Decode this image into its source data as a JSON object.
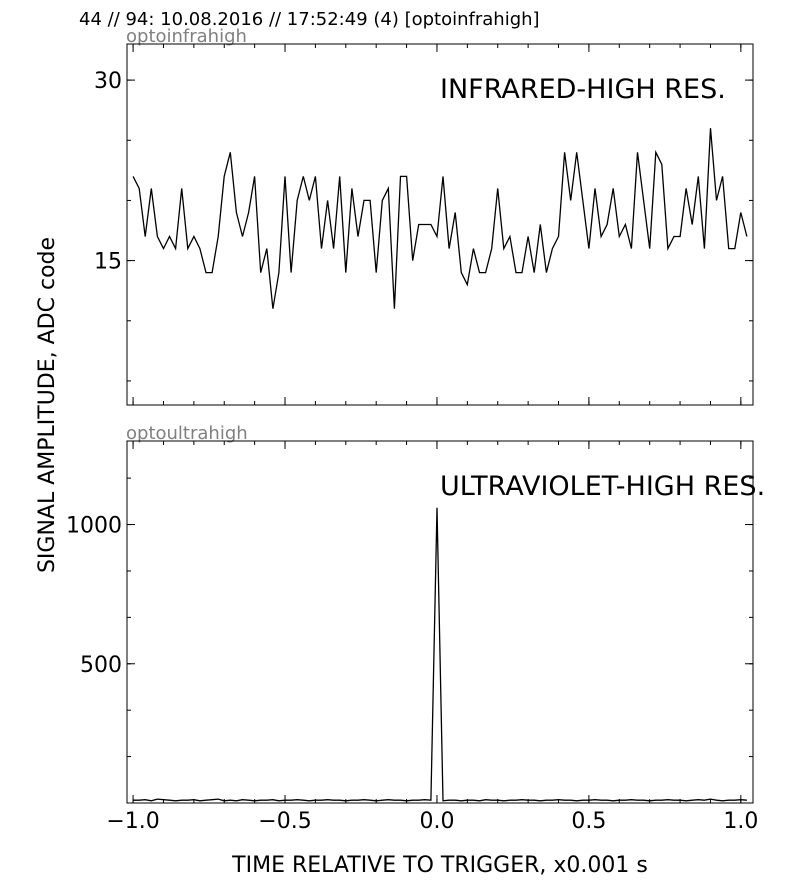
{
  "header": "44 // 94:   10.08.2016 // 17:52:49 (4)  [optoinfrahigh]",
  "ylabel": "SIGNAL AMPLITUDE,  ADC code",
  "xlabel": "TIME RELATIVE TO TRIGGER,   x0.001 s",
  "chart_data": [
    {
      "type": "line",
      "channel": "optoinfrahigh",
      "title": "INFRARED-HIGH RES.",
      "xlim": [
        -1.02,
        1.04
      ],
      "ylim": [
        3,
        33
      ],
      "x_ticks": [
        -1.0,
        -0.5,
        0.0,
        0.5,
        1.0
      ],
      "y_ticks": [
        15,
        30
      ],
      "y_tick_labels": [
        "15",
        "30"
      ],
      "x_tick_labels": [],
      "series": [
        {
          "x0": -1.0,
          "dx": 0.02,
          "values": [
            22,
            21,
            17,
            21,
            17,
            16,
            17,
            16,
            21,
            16,
            17,
            16,
            14,
            14,
            17,
            22,
            24,
            19,
            17,
            19,
            22,
            14,
            16,
            11,
            14,
            22,
            14,
            20,
            22,
            20,
            22,
            16,
            20,
            16,
            22,
            14,
            21,
            17,
            20,
            20,
            14,
            20,
            21,
            11,
            22,
            22,
            15,
            18,
            18,
            18,
            17,
            22,
            16,
            19,
            14,
            13,
            16,
            14,
            14,
            16,
            21,
            16,
            17,
            14,
            14,
            17,
            14,
            18,
            14,
            16,
            17,
            24,
            20,
            24,
            20,
            16,
            21,
            17,
            18,
            21,
            17,
            18,
            16,
            24,
            20,
            16,
            24,
            23,
            16,
            17,
            17,
            21,
            18,
            22,
            16,
            26,
            20,
            22,
            16,
            16,
            19,
            17
          ]
        }
      ]
    },
    {
      "type": "line",
      "channel": "optoultrahigh",
      "title": "ULTRAVIOLET-HIGH RES.",
      "xlim": [
        -1.02,
        1.04
      ],
      "ylim": [
        0,
        1300
      ],
      "x_ticks": [
        -1.0,
        -0.5,
        0.0,
        0.5,
        1.0
      ],
      "x_tick_labels": [
        "−1.0",
        "−0.5",
        "0.0",
        "0.5",
        "1.0"
      ],
      "y_ticks": [
        500,
        1000
      ],
      "y_tick_labels": [
        "500",
        "1000"
      ],
      "series": [
        {
          "x0": -1.0,
          "dx": 0.02,
          "values": [
            10,
            10,
            12,
            8,
            14,
            12,
            10,
            8,
            10,
            10,
            12,
            8,
            10,
            12,
            14,
            8,
            10,
            8,
            12,
            10,
            8,
            10,
            10,
            12,
            8,
            10,
            10,
            12,
            10,
            8,
            10,
            10,
            12,
            10,
            10,
            8,
            10,
            10,
            12,
            10,
            8,
            10,
            12,
            10,
            10,
            8,
            10,
            10,
            12,
            10,
            1060,
            8,
            10,
            10,
            8,
            10,
            10,
            8,
            12,
            10,
            10,
            8,
            10,
            10,
            12,
            10,
            10,
            8,
            10,
            10,
            12,
            10,
            10,
            8,
            10,
            10,
            12,
            10,
            10,
            8,
            10,
            10,
            12,
            10,
            10,
            8,
            10,
            10,
            12,
            10,
            10,
            8,
            10,
            12,
            10,
            14,
            10,
            8,
            10,
            10,
            12,
            10
          ]
        }
      ]
    }
  ]
}
